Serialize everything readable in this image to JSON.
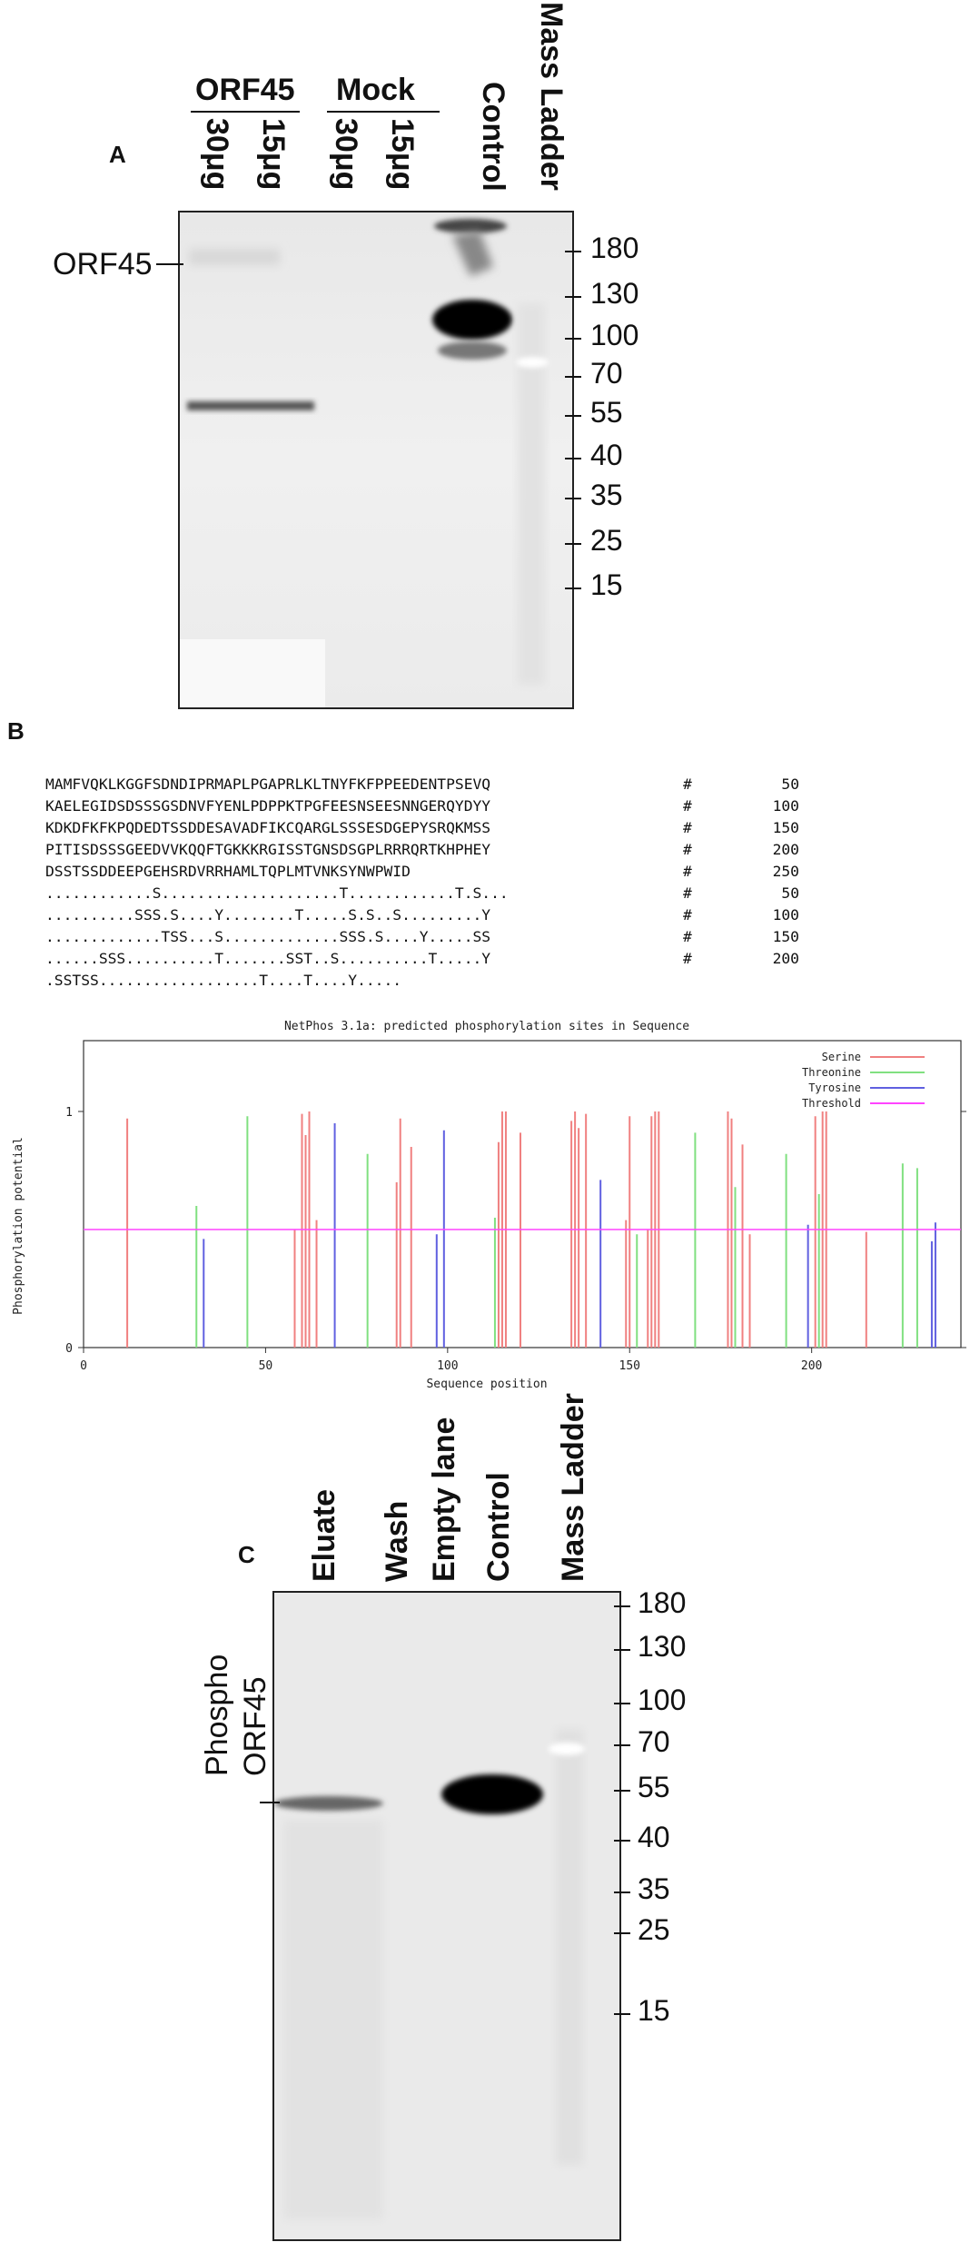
{
  "panel_a": {
    "letter": "A",
    "groups": [
      {
        "name": "ORF45",
        "lanes": [
          "30μg",
          "15μg"
        ]
      },
      {
        "name": "Mock",
        "lanes": [
          "30μg",
          "15μg"
        ]
      }
    ],
    "control_label": "Control",
    "ladder_label": "Mass Ladder",
    "band_label": "ORF45",
    "markers": [
      "180",
      "130",
      "100",
      "70",
      "55",
      "40",
      "35",
      "25",
      "15"
    ]
  },
  "panel_b": {
    "letter": "B",
    "sequence_lines": [
      {
        "text": "MAMFVQKLKGGFSDNDIPRMAPLPGAPRLKLTNYFKFPPEEDENTPSEVQ",
        "hash": "#",
        "num": "50"
      },
      {
        "text": "KAELEGIDSDSSSGSDNVFYENLPDPPKTPGFEESNSEESNNGERQYDYY",
        "hash": "#",
        "num": "100"
      },
      {
        "text": "KDKDFKFKPQDEDTSSDDESAVADFIKCQARGLSSSESDGEPYSRQKMSS",
        "hash": "#",
        "num": "150"
      },
      {
        "text": "PITISDSSSGEEDVVKQQFTGKKKRGISSTGNSDSGPLRRRQRTKHPHEY",
        "hash": "#",
        "num": "200"
      },
      {
        "text": "DSSTSSDDEEPGEHSRDVRRHAMLTQPLMTVNKSYNWPWID",
        "hash": "#",
        "num": "250"
      },
      {
        "text": "............S....................T............T.S...",
        "hash": "#",
        "num": "50"
      },
      {
        "text": "..........SSS.S....Y........T.....S.S..S.........Y",
        "hash": "#",
        "num": "100"
      },
      {
        "text": ".............TSS...S.............SSS.S....Y.....SS",
        "hash": "#",
        "num": "150"
      },
      {
        "text": "......SSS..........T.......SST..S..........T.....Y",
        "hash": "#",
        "num": "200"
      },
      {
        "text": ".SSTSS..................T....T....Y.....",
        "hash": "",
        "num": ""
      }
    ],
    "chart_data": {
      "type": "bar",
      "title": "NetPhos 3.1a: predicted phosphorylation sites in Sequence",
      "xlabel": "Sequence position",
      "ylabel": "Phosphorylation potential",
      "xlim": [
        0,
        241
      ],
      "ylim": [
        0,
        1.3
      ],
      "x_ticks": [
        0,
        50,
        100,
        150,
        200
      ],
      "y_ticks": [
        0,
        1
      ],
      "threshold": 0.5,
      "legend_position": "top-right",
      "series": [
        {
          "name": "Serine",
          "color": "#f08080",
          "points": [
            [
              12,
              0.97
            ],
            [
              58,
              0.5
            ],
            [
              60,
              0.99
            ],
            [
              61,
              0.9
            ],
            [
              62,
              1.0
            ],
            [
              64,
              0.54
            ],
            [
              86,
              0.7
            ],
            [
              87,
              0.97
            ],
            [
              90,
              0.85
            ],
            [
              114,
              0.87
            ],
            [
              115,
              1.0
            ],
            [
              116,
              1.0
            ],
            [
              120,
              0.91
            ],
            [
              134,
              0.96
            ],
            [
              135,
              1.0
            ],
            [
              136,
              0.93
            ],
            [
              138,
              0.99
            ],
            [
              149,
              0.54
            ],
            [
              150,
              0.98
            ],
            [
              155,
              0.5
            ],
            [
              156,
              0.98
            ],
            [
              157,
              1.0
            ],
            [
              158,
              1.0
            ],
            [
              177,
              1.0
            ],
            [
              178,
              0.97
            ],
            [
              181,
              0.86
            ],
            [
              183,
              0.48
            ],
            [
              201,
              0.98
            ],
            [
              203,
              1.0
            ],
            [
              204,
              1.0
            ],
            [
              215,
              0.49
            ]
          ]
        },
        {
          "name": "Threonine",
          "color": "#80e080",
          "points": [
            [
              31,
              0.6
            ],
            [
              45,
              0.98
            ],
            [
              78,
              0.82
            ],
            [
              113,
              0.55
            ],
            [
              152,
              0.48
            ],
            [
              168,
              0.91
            ],
            [
              179,
              0.68
            ],
            [
              193,
              0.82
            ],
            [
              202,
              0.65
            ],
            [
              225,
              0.78
            ],
            [
              229,
              0.76
            ]
          ]
        },
        {
          "name": "Tyrosine",
          "color": "#6060e0",
          "points": [
            [
              33,
              0.46
            ],
            [
              69,
              0.95
            ],
            [
              97,
              0.48
            ],
            [
              99,
              0.92
            ],
            [
              142,
              0.71
            ],
            [
              199,
              0.52
            ],
            [
              233,
              0.45
            ],
            [
              234,
              0.53
            ]
          ]
        },
        {
          "name": "Threshold",
          "color": "#ff44ff",
          "points": []
        }
      ]
    }
  },
  "panel_c": {
    "letter": "C",
    "lanes": [
      "Eluate",
      "Wash",
      "Empty lane",
      "Control",
      "Mass Ladder"
    ],
    "band_label_line1": "Phospho",
    "band_label_line2": "ORF45",
    "markers": [
      "180",
      "130",
      "100",
      "70",
      "55",
      "40",
      "35",
      "25",
      "15"
    ]
  }
}
